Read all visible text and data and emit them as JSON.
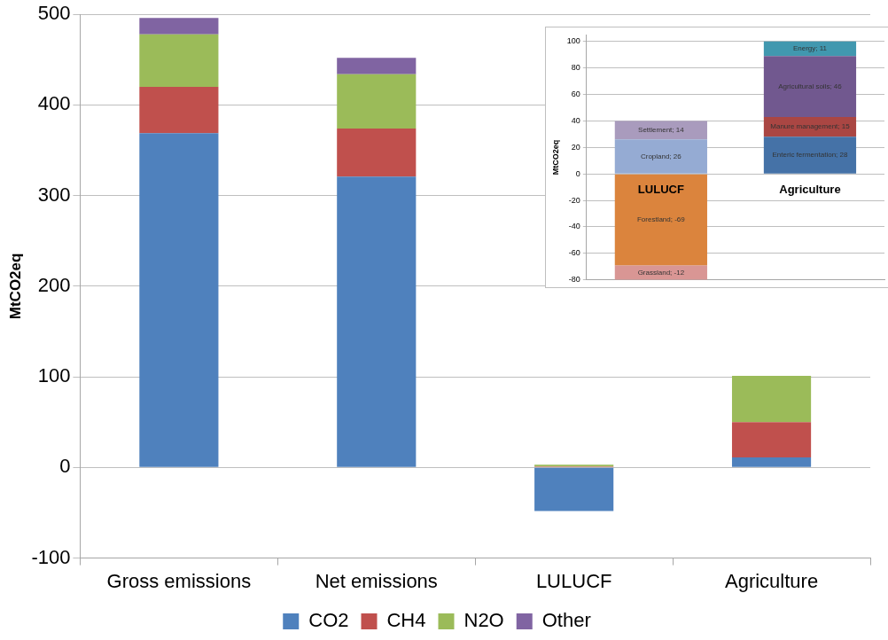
{
  "chart_data": [
    {
      "type": "bar",
      "stacked": true,
      "ylabel": "MtCO2eq",
      "categories": [
        "Gross emissions",
        "Net emissions",
        "LULUCF",
        "Agriculture"
      ],
      "ylim": [
        -100,
        500
      ],
      "yticks": [
        -100,
        0,
        100,
        200,
        300,
        400,
        500
      ],
      "grid": "y",
      "legend": "bottom",
      "series": [
        {
          "name": "CO2",
          "color": "#4f81bd",
          "values": [
            369,
            321,
            -48,
            11
          ]
        },
        {
          "name": "CH4",
          "color": "#c0504d",
          "values": [
            51,
            53,
            1,
            39
          ]
        },
        {
          "name": "N2O",
          "color": "#9bbb59",
          "values": [
            58,
            60,
            2,
            51
          ]
        },
        {
          "name": "Other",
          "color": "#8064a2",
          "values": [
            18,
            18,
            null,
            null
          ]
        }
      ]
    },
    {
      "type": "bar",
      "stacked": true,
      "ylabel": "MtCO2eq",
      "categories": [
        "LULUCF",
        "Agriculture"
      ],
      "ylim": [
        -80,
        105
      ],
      "yticks": [
        -80,
        -60,
        -40,
        -20,
        0,
        20,
        40,
        60,
        80,
        100
      ],
      "grid": "y",
      "series": [
        {
          "color": "#95abd3",
          "values": [
            26,
            null
          ],
          "value_labels": [
            "Cropland; 26",
            null
          ]
        },
        {
          "color": "#a99bbd",
          "values": [
            14,
            null
          ],
          "value_labels": [
            "Settlement; 14",
            null
          ]
        },
        {
          "color": "#db843d",
          "values": [
            -69,
            null
          ],
          "value_labels": [
            "Forestland; -69",
            null
          ]
        },
        {
          "color": "#d99694",
          "values": [
            -12,
            null
          ],
          "value_labels": [
            "Grassland; -12",
            null
          ]
        },
        {
          "color": "#4572a7",
          "values": [
            null,
            28
          ],
          "value_labels": [
            null,
            "Enteric fermentation; 28"
          ]
        },
        {
          "color": "#aa4643",
          "values": [
            null,
            15
          ],
          "value_labels": [
            null,
            "Manure management; 15"
          ]
        },
        {
          "color": "#71588f",
          "values": [
            null,
            46
          ],
          "value_labels": [
            null,
            "Agricultural soils; 46"
          ]
        },
        {
          "color": "#4198af",
          "values": [
            null,
            11
          ],
          "value_labels": [
            null,
            "Energy; 11"
          ]
        }
      ]
    }
  ]
}
